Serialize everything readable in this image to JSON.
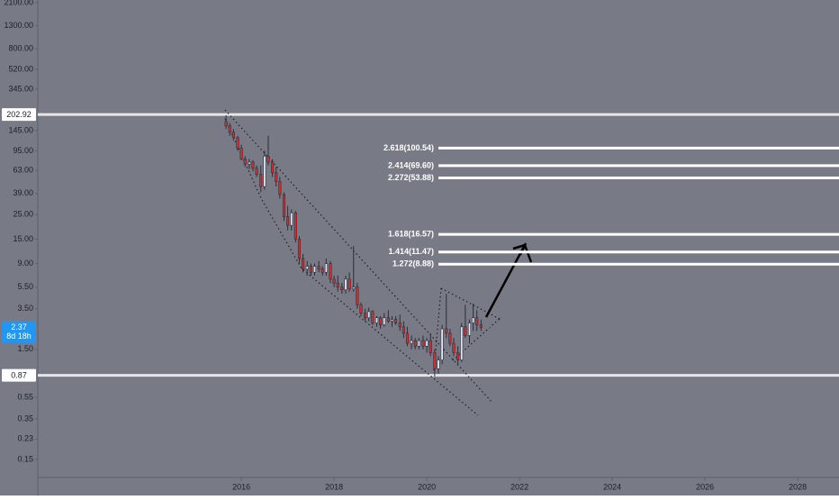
{
  "chart_data": {
    "type": "candlestick",
    "log_scale": true,
    "background": "#787b86",
    "up_color": "#e3e6f0",
    "down_color": "#d32f2f",
    "wick_color": "#2a2e39",
    "x": [
      2015.67,
      2015.75,
      2015.83,
      2015.92,
      2016.0,
      2016.08,
      2016.17,
      2016.25,
      2016.33,
      2016.42,
      2016.5,
      2016.58,
      2016.67,
      2016.75,
      2016.83,
      2016.92,
      2017.0,
      2017.08,
      2017.17,
      2017.25,
      2017.33,
      2017.42,
      2017.5,
      2017.58,
      2017.67,
      2017.75,
      2017.83,
      2017.92,
      2018.0,
      2018.08,
      2018.17,
      2018.25,
      2018.33,
      2018.42,
      2018.5,
      2018.58,
      2018.67,
      2018.75,
      2018.83,
      2018.92,
      2019.0,
      2019.08,
      2019.17,
      2019.25,
      2019.33,
      2019.42,
      2019.5,
      2019.58,
      2019.67,
      2019.75,
      2019.83,
      2019.92,
      2020.0,
      2020.08,
      2020.17,
      2020.25,
      2020.33,
      2020.42,
      2020.5,
      2020.58,
      2020.67,
      2020.75,
      2020.83,
      2020.92,
      2021.0,
      2021.08,
      2021.17
    ],
    "open": [
      175,
      160,
      140,
      125,
      100,
      80,
      72,
      75,
      66,
      58,
      45,
      85,
      75,
      60,
      50,
      38,
      24,
      20,
      26,
      15,
      10,
      8,
      8.5,
      7.5,
      8.5,
      8,
      7.5,
      9,
      6.5,
      6,
      5.5,
      5.2,
      6.5,
      5.3,
      5.5,
      3.8,
      3.2,
      2.9,
      3.3,
      2.6,
      2.9,
      2.5,
      2.9,
      2.7,
      2.8,
      2.6,
      2.4,
      2.1,
      1.7,
      1.8,
      1.6,
      1.8,
      1.6,
      1.8,
      1.4,
      1.0,
      1.2,
      2.3,
      2.1,
      1.7,
      1.4,
      1.2,
      2.4,
      2.0,
      2.6,
      2.9,
      2.5
    ],
    "high": [
      200,
      170,
      150,
      130,
      108,
      85,
      80,
      78,
      70,
      70,
      95,
      130,
      80,
      68,
      55,
      40,
      30,
      28,
      27,
      16,
      11,
      9.5,
      9,
      9,
      9.5,
      8.5,
      10,
      9.5,
      7,
      7,
      6,
      7,
      7.5,
      13,
      6,
      4,
      3.5,
      3.6,
      3.4,
      3,
      3,
      3.2,
      3.4,
      3,
      3,
      3.1,
      2.7,
      2.4,
      2,
      1.9,
      1.9,
      2,
      1.9,
      2.1,
      1.5,
      1.3,
      2.5,
      4.8,
      2.3,
      1.9,
      1.6,
      2.6,
      3.8,
      2.8,
      3.9,
      3.4,
      2.8
    ],
    "low": [
      150,
      130,
      118,
      95,
      78,
      68,
      65,
      62,
      55,
      40,
      42,
      70,
      55,
      45,
      35,
      22,
      18,
      18,
      14,
      9,
      7.5,
      7,
      7,
      7,
      7.5,
      7,
      7,
      6,
      5.5,
      5,
      4.8,
      4.8,
      5,
      5,
      3.5,
      3,
      2.7,
      2.7,
      2.5,
      2.4,
      2.3,
      2.4,
      2.6,
      2.4,
      2.5,
      2.2,
      1.9,
      1.6,
      1.5,
      1.5,
      1.5,
      1.5,
      1.4,
      1.3,
      0.85,
      0.9,
      1.1,
      1.9,
      1.6,
      1.3,
      1.1,
      1.15,
      1.9,
      1.7,
      2.2,
      2.2,
      2.2
    ],
    "close": [
      160,
      140,
      125,
      100,
      80,
      72,
      75,
      66,
      58,
      45,
      85,
      75,
      60,
      50,
      38,
      24,
      20,
      26,
      15,
      10,
      8,
      8.5,
      7.5,
      8.5,
      8,
      7.5,
      9,
      6.5,
      6,
      5.5,
      5.2,
      6.5,
      5.3,
      5.5,
      3.8,
      3.2,
      2.9,
      3.3,
      2.6,
      2.9,
      2.5,
      2.9,
      2.7,
      2.8,
      2.6,
      2.4,
      2.1,
      1.7,
      1.8,
      1.6,
      1.8,
      1.6,
      1.8,
      1.4,
      1.0,
      1.2,
      2.3,
      2.1,
      1.7,
      1.4,
      1.2,
      2.4,
      2.0,
      2.6,
      2.9,
      2.5,
      2.37
    ],
    "xlim": [
      2011.61,
      2028.89
    ],
    "ylim": [
      0.103,
      2221
    ],
    "xticks": [
      2016,
      2018,
      2020,
      2022,
      2024,
      2026,
      2028
    ],
    "yticks": [
      {
        "value": 2100,
        "label": "2100.00"
      },
      {
        "value": 1300,
        "label": "1300.00"
      },
      {
        "value": 800,
        "label": "800.00"
      },
      {
        "value": 520,
        "label": "520.00"
      },
      {
        "value": 345,
        "label": "345.00"
      },
      {
        "value": 145,
        "label": "145.00"
      },
      {
        "value": 95,
        "label": "95.00"
      },
      {
        "value": 63,
        "label": "63.00"
      },
      {
        "value": 39,
        "label": "39.00"
      },
      {
        "value": 25,
        "label": "25.00"
      },
      {
        "value": 15,
        "label": "15.00"
      },
      {
        "value": 9,
        "label": "9.00"
      },
      {
        "value": 5.5,
        "label": "5.50"
      },
      {
        "value": 3.5,
        "label": "3.50"
      },
      {
        "value": 1.5,
        "label": "1.50"
      },
      {
        "value": 0.55,
        "label": "0.55"
      },
      {
        "value": 0.35,
        "label": "0.35"
      },
      {
        "value": 0.23,
        "label": "0.23"
      },
      {
        "value": 0.15,
        "label": "0.15"
      }
    ],
    "price_lines": [
      202.92,
      0.87
    ],
    "last_price": 2.37,
    "countdown": "8d 18h",
    "last_price_color": "#2196f3",
    "fib_levels": [
      {
        "value": 100.54,
        "label": "2.618(100.54)"
      },
      {
        "value": 69.6,
        "label": "2.414(69.60)"
      },
      {
        "value": 53.88,
        "label": "2.272(53.88)"
      },
      {
        "value": 16.57,
        "label": "1.618(16.57)"
      },
      {
        "value": 11.47,
        "label": "1.414(11.47)"
      },
      {
        "value": 8.88,
        "label": "1.272(8.88)"
      }
    ]
  }
}
